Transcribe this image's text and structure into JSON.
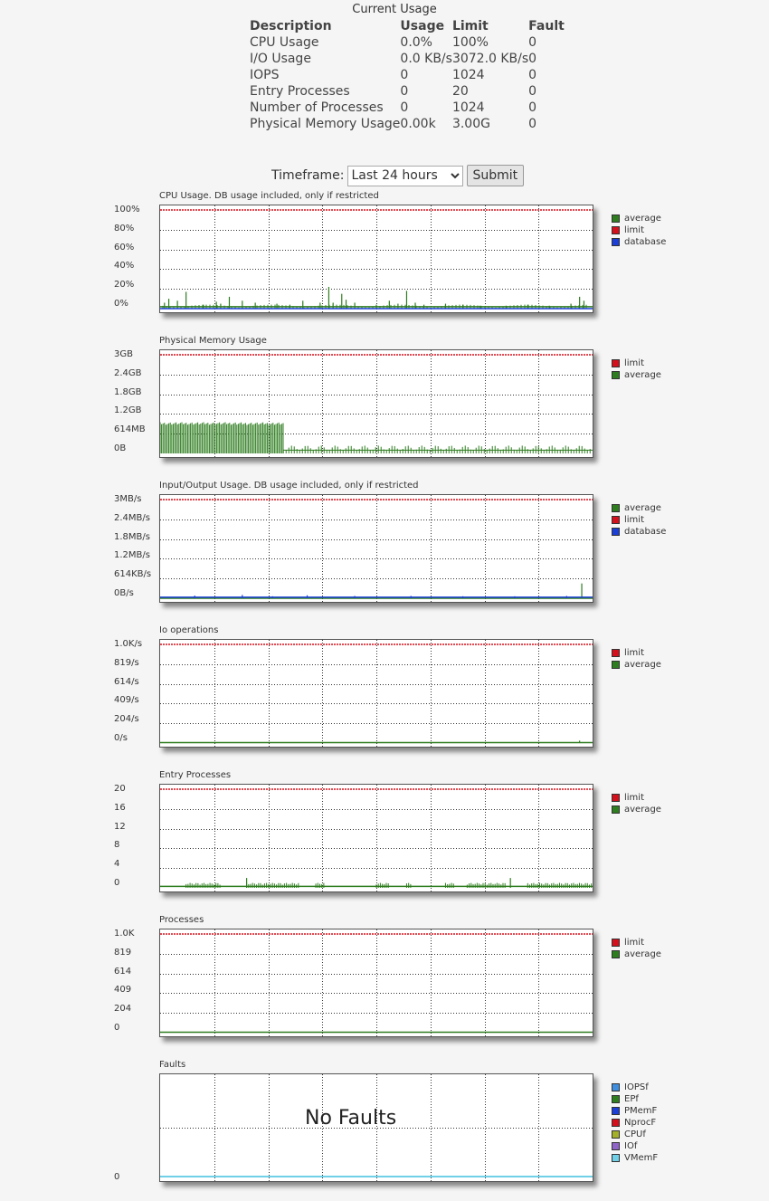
{
  "current_usage": {
    "title": "Current Usage",
    "headers": [
      "Description",
      "Usage",
      "Limit",
      "Fault"
    ],
    "rows": [
      [
        "CPU Usage",
        "0.0%",
        "100%",
        "0"
      ],
      [
        "I/O Usage",
        "0.0 KB/s",
        "3072.0 KB/s",
        "0"
      ],
      [
        "IOPS",
        "0",
        "1024",
        "0"
      ],
      [
        "Entry Processes",
        "0",
        "20",
        "0"
      ],
      [
        "Number of Processes",
        "0",
        "1024",
        "0"
      ],
      [
        "Physical Memory Usage",
        "0.00k",
        "3.00G",
        "0"
      ]
    ]
  },
  "timeframe": {
    "label": "Timeframe:",
    "selected": "Last 24 hours",
    "submit_label": "Submit"
  },
  "colors": {
    "average": "#2e7d1f",
    "limit": "#d4101c",
    "database": "#1a3ed6",
    "IOPSf": "#3f8ee0",
    "EPf": "#2e7d1f",
    "PMemF": "#1a3ed6",
    "NprocF": "#d4101c",
    "CPUf": "#a3b12a",
    "IOf": "#9064c8",
    "VMemF": "#6fd0e8"
  },
  "chart_data": [
    {
      "id": "cpu",
      "type": "line",
      "title": "CPU Usage. DB usage included, only if restricted",
      "y_ticks": [
        "100%",
        "80%",
        "60%",
        "40%",
        "20%",
        "0%"
      ],
      "ylim": [
        0,
        100
      ],
      "legend": [
        "average",
        "limit",
        "database"
      ],
      "series": [
        {
          "name": "limit",
          "values": [
            100
          ]
        },
        {
          "name": "average",
          "spikes": [
            [
              0.01,
              6
            ],
            [
              0.02,
              10
            ],
            [
              0.04,
              8
            ],
            [
              0.06,
              17
            ],
            [
              0.1,
              4
            ],
            [
              0.13,
              7
            ],
            [
              0.14,
              5
            ],
            [
              0.16,
              12
            ],
            [
              0.19,
              8
            ],
            [
              0.22,
              6
            ],
            [
              0.27,
              5
            ],
            [
              0.3,
              4
            ],
            [
              0.33,
              8
            ],
            [
              0.37,
              6
            ],
            [
              0.39,
              22
            ],
            [
              0.4,
              6
            ],
            [
              0.42,
              15
            ],
            [
              0.43,
              9
            ],
            [
              0.45,
              6
            ],
            [
              0.5,
              4
            ],
            [
              0.53,
              8
            ],
            [
              0.55,
              5
            ],
            [
              0.57,
              18
            ],
            [
              0.59,
              6
            ],
            [
              0.61,
              4
            ],
            [
              0.66,
              5
            ],
            [
              0.7,
              4
            ],
            [
              0.74,
              3
            ],
            [
              0.8,
              3
            ],
            [
              0.85,
              4
            ],
            [
              0.9,
              3
            ],
            [
              0.95,
              5
            ],
            [
              0.97,
              12
            ],
            [
              0.98,
              8
            ]
          ],
          "baseline": 2
        },
        {
          "name": "database",
          "values": [
            0
          ]
        }
      ]
    },
    {
      "id": "memory",
      "type": "line",
      "title": "Physical Memory Usage",
      "y_ticks": [
        "3GB",
        "2.4GB",
        "1.8GB",
        "1.2GB",
        "614MB",
        "0B"
      ],
      "ylim": [
        0,
        3
      ],
      "legend": [
        "limit",
        "average"
      ],
      "series": [
        {
          "name": "limit",
          "values": [
            3
          ]
        },
        {
          "name": "average",
          "high_block": {
            "x": [
              0,
              0.285
            ],
            "value": 0.95
          },
          "baseline": 0.1,
          "low_segments": [
            [
              0.81,
              0.86,
              0.2
            ],
            [
              0.95,
              0.99,
              0.2
            ]
          ]
        }
      ]
    },
    {
      "id": "io",
      "type": "line",
      "title": "Input/Output Usage. DB usage included, only if restricted",
      "y_ticks": [
        "3MB/s",
        "2.4MB/s",
        "1.8MB/s",
        "1.2MB/s",
        "614KB/s",
        "0B/s"
      ],
      "ylim": [
        0,
        3
      ],
      "legend": [
        "average",
        "limit",
        "database"
      ],
      "series": [
        {
          "name": "limit",
          "values": [
            3
          ]
        },
        {
          "name": "average",
          "spikes": [
            [
              0.975,
              0.45
            ]
          ],
          "baseline": 0
        },
        {
          "name": "database",
          "baseline": 0.03,
          "spikes": [
            [
              0.08,
              0.08
            ],
            [
              0.19,
              0.1
            ],
            [
              0.26,
              0.06
            ],
            [
              0.34,
              0.09
            ],
            [
              0.45,
              0.07
            ],
            [
              0.58,
              0.07
            ],
            [
              0.7,
              0.06
            ],
            [
              0.82,
              0.06
            ],
            [
              0.94,
              0.07
            ]
          ]
        }
      ]
    },
    {
      "id": "iops",
      "type": "line",
      "title": "Io operations",
      "y_ticks": [
        "1.0K/s",
        "819/s",
        "614/s",
        "409/s",
        "204/s",
        "0/s"
      ],
      "ylim": [
        0,
        1024
      ],
      "legend": [
        "limit",
        "average"
      ],
      "series": [
        {
          "name": "limit",
          "values": [
            1024
          ]
        },
        {
          "name": "average",
          "spikes": [
            [
              0.97,
              25
            ]
          ],
          "baseline": 5
        }
      ]
    },
    {
      "id": "entry",
      "type": "line",
      "title": "Entry Processes",
      "y_ticks": [
        "20",
        "16",
        "12",
        "8",
        "4",
        "0"
      ],
      "ylim": [
        0,
        20
      ],
      "legend": [
        "limit",
        "average"
      ],
      "series": [
        {
          "name": "limit",
          "values": [
            20
          ]
        },
        {
          "name": "average",
          "baseline": 0.3,
          "segments": [
            [
              0.06,
              0.14,
              1
            ],
            [
              0.2,
              0.32,
              1
            ],
            [
              0.36,
              0.38,
              1
            ],
            [
              0.5,
              0.53,
              1
            ],
            [
              0.57,
              0.58,
              1
            ],
            [
              0.66,
              0.68,
              1
            ],
            [
              0.71,
              0.8,
              1
            ],
            [
              0.85,
              1.0,
              1
            ]
          ],
          "spikes": [
            [
              0.2,
              2
            ],
            [
              0.81,
              2
            ]
          ]
        }
      ]
    },
    {
      "id": "processes",
      "type": "line",
      "title": "Processes",
      "y_ticks": [
        "1.0K",
        "819",
        "614",
        "409",
        "204",
        "0"
      ],
      "ylim": [
        0,
        1024
      ],
      "legend": [
        "limit",
        "average"
      ],
      "series": [
        {
          "name": "limit",
          "values": [
            1024
          ]
        },
        {
          "name": "average",
          "baseline": 5
        }
      ]
    },
    {
      "id": "faults",
      "type": "line",
      "title": "Faults",
      "y_ticks": [
        "0"
      ],
      "ylim": [
        0,
        1
      ],
      "legend": [
        "IOPSf",
        "EPf",
        "PMemF",
        "NprocF",
        "CPUf",
        "IOf",
        "VMemF"
      ],
      "annotation": "No Faults",
      "series": [
        {
          "name": "VMemF",
          "values": [
            0
          ]
        }
      ]
    }
  ]
}
